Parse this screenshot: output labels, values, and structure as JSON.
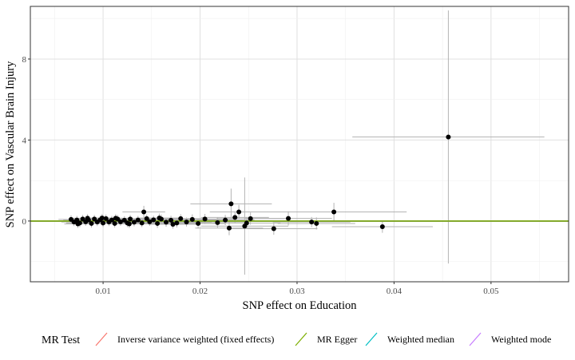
{
  "chart_data": {
    "type": "scatter",
    "title": "",
    "xlabel": "SNP effect on Education",
    "ylabel": "SNP effect on Vascular Brain Injury",
    "xlim": [
      0.0025,
      0.058
    ],
    "ylim": [
      -3.0,
      10.6
    ],
    "xticks": [
      0.01,
      0.02,
      0.03,
      0.04,
      0.05
    ],
    "xtick_labels": [
      "0.01",
      "0.02",
      "0.03",
      "0.04",
      "0.05"
    ],
    "yticks": [
      0,
      4,
      8
    ],
    "ytick_labels": [
      "0",
      "4",
      "8"
    ],
    "grid": true,
    "legend": {
      "title": "MR Test",
      "position": "bottom",
      "entries": [
        {
          "label": "Inverse variance weighted (fixed effects)",
          "color": "#F8766D"
        },
        {
          "label": "MR Egger",
          "color": "#7CAE00"
        },
        {
          "label": "Weighted median",
          "color": "#00BFC4"
        },
        {
          "label": "Weighted mode",
          "color": "#C77CFF"
        }
      ]
    },
    "regression_lines": [
      {
        "method": "Inverse variance weighted (fixed effects)",
        "slope": 0.0,
        "intercept": 0.0,
        "color": "#F8766D"
      },
      {
        "method": "Weighted median",
        "slope": 0.0,
        "intercept": 0.0,
        "color": "#00BFC4"
      },
      {
        "method": "Weighted mode",
        "slope": 0.0,
        "intercept": 0.0,
        "color": "#C77CFF"
      },
      {
        "method": "MR Egger",
        "slope": 0.0,
        "intercept": 0.0,
        "color": "#7CAE00"
      }
    ],
    "error_bar_color": "#b3b3b3",
    "point_color": "#000000",
    "points": [
      {
        "x": 0.0456,
        "y": 4.15,
        "xerr": 0.0099,
        "yerr": 6.25
      },
      {
        "x": 0.0388,
        "y": -0.28,
        "xerr": 0.0052,
        "yerr": 0.3
      },
      {
        "x": 0.0338,
        "y": 0.45,
        "xerr": 0.0075,
        "yerr": 0.45
      },
      {
        "x": 0.0291,
        "y": 0.13,
        "xerr": 0.0045,
        "yerr": 0.35
      },
      {
        "x": 0.0276,
        "y": -0.38,
        "xerr": 0.0045,
        "yerr": 0.3
      },
      {
        "x": 0.0246,
        "y": -0.25,
        "xerr": 0.0045,
        "yerr": 2.4
      },
      {
        "x": 0.0232,
        "y": 0.85,
        "xerr": 0.0042,
        "yerr": 0.75
      },
      {
        "x": 0.024,
        "y": 0.45,
        "xerr": 0.003,
        "yerr": 0.35
      },
      {
        "x": 0.023,
        "y": -0.35,
        "xerr": 0.0035,
        "yerr": 0.35
      },
      {
        "x": 0.0142,
        "y": 0.45,
        "xerr": 0.0022,
        "yerr": 0.3
      },
      {
        "x": 0.032,
        "y": -0.12,
        "xerr": 0.004,
        "yerr": 0.3
      },
      {
        "x": 0.0315,
        "y": -0.05,
        "xerr": 0.004,
        "yerr": 0.25
      },
      {
        "x": 0.0252,
        "y": 0.12,
        "xerr": 0.0035,
        "yerr": 0.3
      },
      {
        "x": 0.0248,
        "y": -0.1,
        "xerr": 0.0035,
        "yerr": 0.3
      },
      {
        "x": 0.0236,
        "y": 0.18,
        "xerr": 0.0035,
        "yerr": 0.3
      },
      {
        "x": 0.0226,
        "y": 0.05,
        "xerr": 0.003,
        "yerr": 0.25
      },
      {
        "x": 0.0218,
        "y": -0.08,
        "xerr": 0.003,
        "yerr": 0.25
      },
      {
        "x": 0.0205,
        "y": 0.1,
        "xerr": 0.003,
        "yerr": 0.25
      },
      {
        "x": 0.0198,
        "y": -0.12,
        "xerr": 0.0028,
        "yerr": 0.25
      },
      {
        "x": 0.0192,
        "y": 0.08,
        "xerr": 0.0028,
        "yerr": 0.25
      },
      {
        "x": 0.0186,
        "y": -0.05,
        "xerr": 0.0026,
        "yerr": 0.22
      },
      {
        "x": 0.018,
        "y": 0.12,
        "xerr": 0.0026,
        "yerr": 0.22
      },
      {
        "x": 0.0176,
        "y": -0.1,
        "xerr": 0.0025,
        "yerr": 0.22
      },
      {
        "x": 0.017,
        "y": 0.04,
        "xerr": 0.0025,
        "yerr": 0.22
      },
      {
        "x": 0.0165,
        "y": -0.06,
        "xerr": 0.0024,
        "yerr": 0.22
      },
      {
        "x": 0.016,
        "y": 0.1,
        "xerr": 0.0024,
        "yerr": 0.22
      },
      {
        "x": 0.0156,
        "y": -0.12,
        "xerr": 0.0023,
        "yerr": 0.22
      },
      {
        "x": 0.0152,
        "y": 0.06,
        "xerr": 0.0023,
        "yerr": 0.2
      },
      {
        "x": 0.0148,
        "y": -0.04,
        "xerr": 0.0022,
        "yerr": 0.2
      },
      {
        "x": 0.0145,
        "y": 0.12,
        "xerr": 0.0022,
        "yerr": 0.2
      },
      {
        "x": 0.014,
        "y": -0.1,
        "xerr": 0.0021,
        "yerr": 0.2
      },
      {
        "x": 0.0136,
        "y": 0.05,
        "xerr": 0.0021,
        "yerr": 0.2
      },
      {
        "x": 0.0132,
        "y": -0.06,
        "xerr": 0.002,
        "yerr": 0.2
      },
      {
        "x": 0.0128,
        "y": 0.1,
        "xerr": 0.002,
        "yerr": 0.2
      },
      {
        "x": 0.0125,
        "y": -0.1,
        "xerr": 0.002,
        "yerr": 0.2
      },
      {
        "x": 0.0122,
        "y": 0.04,
        "xerr": 0.0019,
        "yerr": 0.2
      },
      {
        "x": 0.0118,
        "y": -0.04,
        "xerr": 0.0019,
        "yerr": 0.2
      },
      {
        "x": 0.0115,
        "y": 0.1,
        "xerr": 0.0018,
        "yerr": 0.2
      },
      {
        "x": 0.0112,
        "y": -0.12,
        "xerr": 0.0018,
        "yerr": 0.2
      },
      {
        "x": 0.0109,
        "y": 0.05,
        "xerr": 0.0018,
        "yerr": 0.2
      },
      {
        "x": 0.0106,
        "y": -0.05,
        "xerr": 0.0017,
        "yerr": 0.2
      },
      {
        "x": 0.0103,
        "y": 0.12,
        "xerr": 0.0017,
        "yerr": 0.2
      },
      {
        "x": 0.01,
        "y": -0.1,
        "xerr": 0.0017,
        "yerr": 0.2
      },
      {
        "x": 0.0097,
        "y": 0.06,
        "xerr": 0.0016,
        "yerr": 0.2
      },
      {
        "x": 0.0094,
        "y": -0.05,
        "xerr": 0.0016,
        "yerr": 0.2
      },
      {
        "x": 0.0091,
        "y": 0.1,
        "xerr": 0.0016,
        "yerr": 0.2
      },
      {
        "x": 0.0088,
        "y": -0.12,
        "xerr": 0.0015,
        "yerr": 0.2
      },
      {
        "x": 0.0085,
        "y": 0.05,
        "xerr": 0.0015,
        "yerr": 0.2
      },
      {
        "x": 0.0082,
        "y": -0.04,
        "xerr": 0.0015,
        "yerr": 0.2
      },
      {
        "x": 0.0079,
        "y": 0.1,
        "xerr": 0.0014,
        "yerr": 0.2
      },
      {
        "x": 0.0076,
        "y": -0.1,
        "xerr": 0.0014,
        "yerr": 0.2
      },
      {
        "x": 0.0073,
        "y": 0.05,
        "xerr": 0.0014,
        "yerr": 0.2
      },
      {
        "x": 0.007,
        "y": -0.05,
        "xerr": 0.0013,
        "yerr": 0.2
      },
      {
        "x": 0.0067,
        "y": 0.08,
        "xerr": 0.0013,
        "yerr": 0.2
      },
      {
        "x": 0.0099,
        "y": 0.15,
        "xerr": 0.0017,
        "yerr": 0.2
      },
      {
        "x": 0.0113,
        "y": 0.14,
        "xerr": 0.0018,
        "yerr": 0.2
      },
      {
        "x": 0.0127,
        "y": -0.14,
        "xerr": 0.002,
        "yerr": 0.2
      },
      {
        "x": 0.0084,
        "y": 0.14,
        "xerr": 0.0015,
        "yerr": 0.2
      },
      {
        "x": 0.0074,
        "y": -0.14,
        "xerr": 0.0014,
        "yerr": 0.2
      },
      {
        "x": 0.0158,
        "y": 0.15,
        "xerr": 0.0024,
        "yerr": 0.22
      },
      {
        "x": 0.0172,
        "y": -0.16,
        "xerr": 0.0025,
        "yerr": 0.22
      }
    ]
  }
}
